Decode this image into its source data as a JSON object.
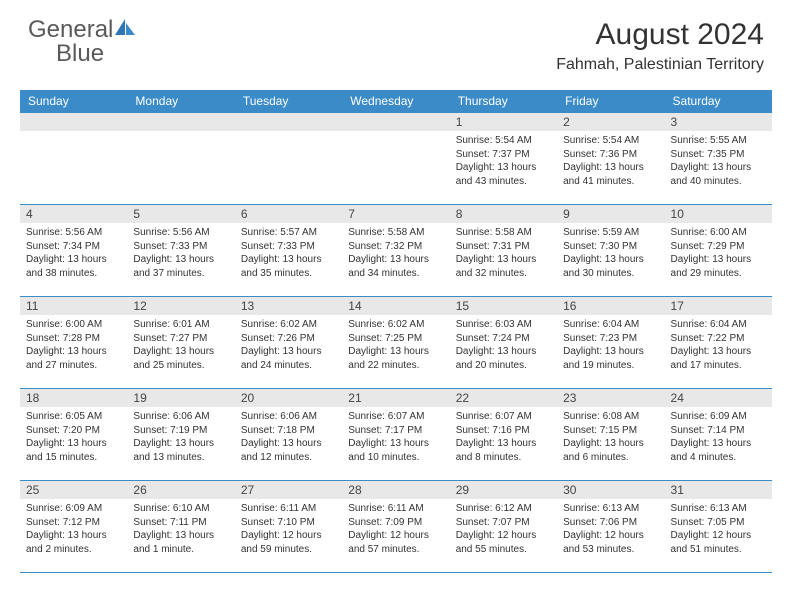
{
  "brand": {
    "name_gray": "General",
    "name_blue": "Blue"
  },
  "title": "August 2024",
  "location": "Fahmah, Palestinian Territory",
  "colors": {
    "header_bg": "#3b8bc9",
    "header_fg": "#ffffff",
    "daynum_bg": "#e8e8e8",
    "row_border": "#3b8bc9",
    "text": "#333333",
    "logo_gray": "#5a5a5a",
    "logo_blue": "#3b8bc9",
    "page_bg": "#ffffff"
  },
  "day_names": [
    "Sunday",
    "Monday",
    "Tuesday",
    "Wednesday",
    "Thursday",
    "Friday",
    "Saturday"
  ],
  "weeks": [
    [
      {
        "day": "",
        "lines": []
      },
      {
        "day": "",
        "lines": []
      },
      {
        "day": "",
        "lines": []
      },
      {
        "day": "",
        "lines": []
      },
      {
        "day": "1",
        "lines": [
          "Sunrise: 5:54 AM",
          "Sunset: 7:37 PM",
          "Daylight: 13 hours and 43 minutes."
        ]
      },
      {
        "day": "2",
        "lines": [
          "Sunrise: 5:54 AM",
          "Sunset: 7:36 PM",
          "Daylight: 13 hours and 41 minutes."
        ]
      },
      {
        "day": "3",
        "lines": [
          "Sunrise: 5:55 AM",
          "Sunset: 7:35 PM",
          "Daylight: 13 hours and 40 minutes."
        ]
      }
    ],
    [
      {
        "day": "4",
        "lines": [
          "Sunrise: 5:56 AM",
          "Sunset: 7:34 PM",
          "Daylight: 13 hours and 38 minutes."
        ]
      },
      {
        "day": "5",
        "lines": [
          "Sunrise: 5:56 AM",
          "Sunset: 7:33 PM",
          "Daylight: 13 hours and 37 minutes."
        ]
      },
      {
        "day": "6",
        "lines": [
          "Sunrise: 5:57 AM",
          "Sunset: 7:33 PM",
          "Daylight: 13 hours and 35 minutes."
        ]
      },
      {
        "day": "7",
        "lines": [
          "Sunrise: 5:58 AM",
          "Sunset: 7:32 PM",
          "Daylight: 13 hours and 34 minutes."
        ]
      },
      {
        "day": "8",
        "lines": [
          "Sunrise: 5:58 AM",
          "Sunset: 7:31 PM",
          "Daylight: 13 hours and 32 minutes."
        ]
      },
      {
        "day": "9",
        "lines": [
          "Sunrise: 5:59 AM",
          "Sunset: 7:30 PM",
          "Daylight: 13 hours and 30 minutes."
        ]
      },
      {
        "day": "10",
        "lines": [
          "Sunrise: 6:00 AM",
          "Sunset: 7:29 PM",
          "Daylight: 13 hours and 29 minutes."
        ]
      }
    ],
    [
      {
        "day": "11",
        "lines": [
          "Sunrise: 6:00 AM",
          "Sunset: 7:28 PM",
          "Daylight: 13 hours and 27 minutes."
        ]
      },
      {
        "day": "12",
        "lines": [
          "Sunrise: 6:01 AM",
          "Sunset: 7:27 PM",
          "Daylight: 13 hours and 25 minutes."
        ]
      },
      {
        "day": "13",
        "lines": [
          "Sunrise: 6:02 AM",
          "Sunset: 7:26 PM",
          "Daylight: 13 hours and 24 minutes."
        ]
      },
      {
        "day": "14",
        "lines": [
          "Sunrise: 6:02 AM",
          "Sunset: 7:25 PM",
          "Daylight: 13 hours and 22 minutes."
        ]
      },
      {
        "day": "15",
        "lines": [
          "Sunrise: 6:03 AM",
          "Sunset: 7:24 PM",
          "Daylight: 13 hours and 20 minutes."
        ]
      },
      {
        "day": "16",
        "lines": [
          "Sunrise: 6:04 AM",
          "Sunset: 7:23 PM",
          "Daylight: 13 hours and 19 minutes."
        ]
      },
      {
        "day": "17",
        "lines": [
          "Sunrise: 6:04 AM",
          "Sunset: 7:22 PM",
          "Daylight: 13 hours and 17 minutes."
        ]
      }
    ],
    [
      {
        "day": "18",
        "lines": [
          "Sunrise: 6:05 AM",
          "Sunset: 7:20 PM",
          "Daylight: 13 hours and 15 minutes."
        ]
      },
      {
        "day": "19",
        "lines": [
          "Sunrise: 6:06 AM",
          "Sunset: 7:19 PM",
          "Daylight: 13 hours and 13 minutes."
        ]
      },
      {
        "day": "20",
        "lines": [
          "Sunrise: 6:06 AM",
          "Sunset: 7:18 PM",
          "Daylight: 13 hours and 12 minutes."
        ]
      },
      {
        "day": "21",
        "lines": [
          "Sunrise: 6:07 AM",
          "Sunset: 7:17 PM",
          "Daylight: 13 hours and 10 minutes."
        ]
      },
      {
        "day": "22",
        "lines": [
          "Sunrise: 6:07 AM",
          "Sunset: 7:16 PM",
          "Daylight: 13 hours and 8 minutes."
        ]
      },
      {
        "day": "23",
        "lines": [
          "Sunrise: 6:08 AM",
          "Sunset: 7:15 PM",
          "Daylight: 13 hours and 6 minutes."
        ]
      },
      {
        "day": "24",
        "lines": [
          "Sunrise: 6:09 AM",
          "Sunset: 7:14 PM",
          "Daylight: 13 hours and 4 minutes."
        ]
      }
    ],
    [
      {
        "day": "25",
        "lines": [
          "Sunrise: 6:09 AM",
          "Sunset: 7:12 PM",
          "Daylight: 13 hours and 2 minutes."
        ]
      },
      {
        "day": "26",
        "lines": [
          "Sunrise: 6:10 AM",
          "Sunset: 7:11 PM",
          "Daylight: 13 hours and 1 minute."
        ]
      },
      {
        "day": "27",
        "lines": [
          "Sunrise: 6:11 AM",
          "Sunset: 7:10 PM",
          "Daylight: 12 hours and 59 minutes."
        ]
      },
      {
        "day": "28",
        "lines": [
          "Sunrise: 6:11 AM",
          "Sunset: 7:09 PM",
          "Daylight: 12 hours and 57 minutes."
        ]
      },
      {
        "day": "29",
        "lines": [
          "Sunrise: 6:12 AM",
          "Sunset: 7:07 PM",
          "Daylight: 12 hours and 55 minutes."
        ]
      },
      {
        "day": "30",
        "lines": [
          "Sunrise: 6:13 AM",
          "Sunset: 7:06 PM",
          "Daylight: 12 hours and 53 minutes."
        ]
      },
      {
        "day": "31",
        "lines": [
          "Sunrise: 6:13 AM",
          "Sunset: 7:05 PM",
          "Daylight: 12 hours and 51 minutes."
        ]
      }
    ]
  ]
}
